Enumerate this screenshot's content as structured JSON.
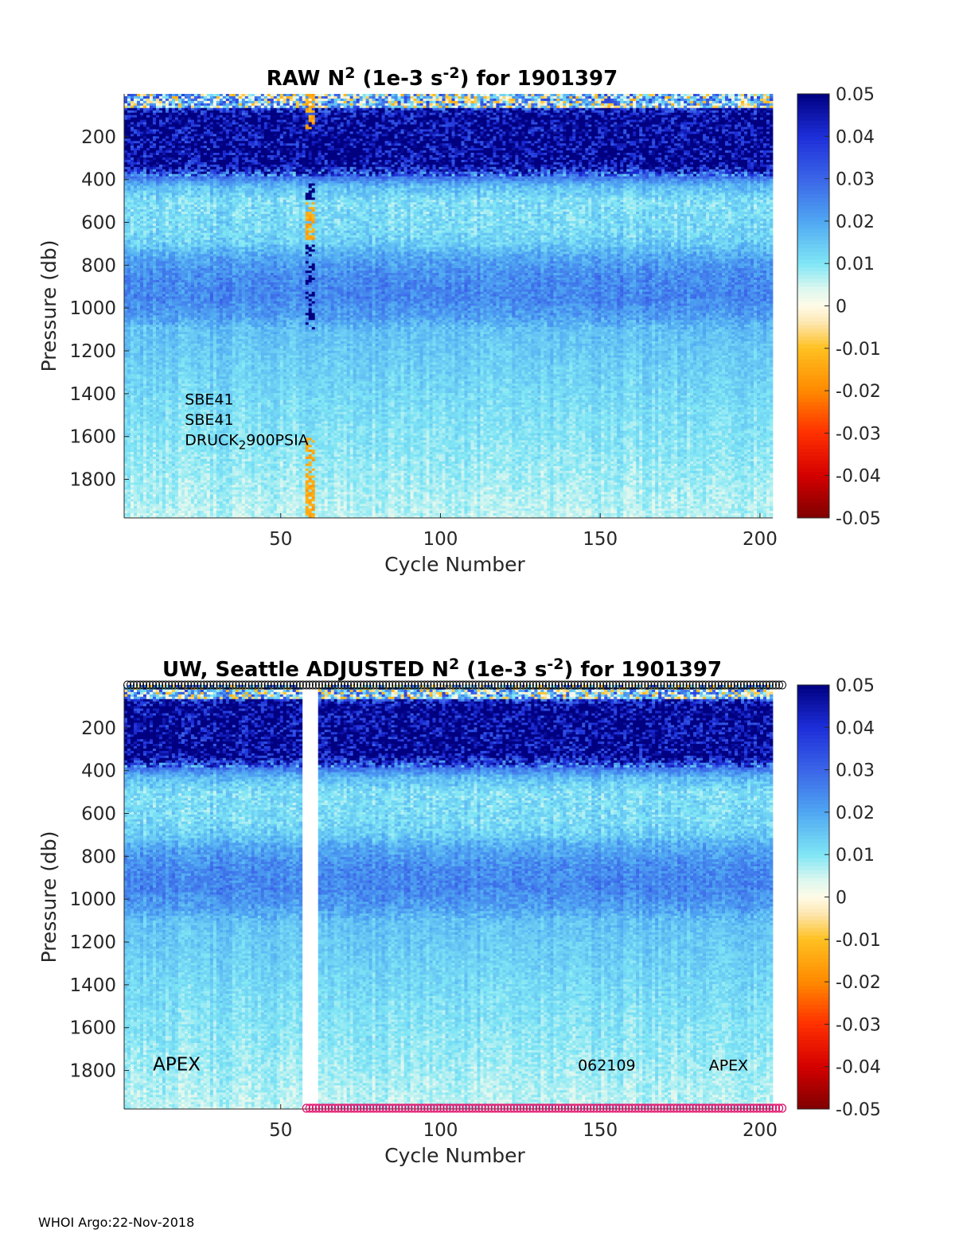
{
  "footer": "WHOI Argo:22-Nov-2018",
  "colormap": {
    "stops": [
      [
        -0.05,
        "#7f0000"
      ],
      [
        -0.04,
        "#d40000"
      ],
      [
        -0.03,
        "#ff3000"
      ],
      [
        -0.02,
        "#ff8a00"
      ],
      [
        -0.01,
        "#ffc020"
      ],
      [
        -0.004,
        "#fde7b0"
      ],
      [
        0.0,
        "#fffbe8"
      ],
      [
        0.004,
        "#dcf7ef"
      ],
      [
        0.01,
        "#7fe6f5"
      ],
      [
        0.02,
        "#4fa6f2"
      ],
      [
        0.03,
        "#3a64e8"
      ],
      [
        0.04,
        "#1d2ed8"
      ],
      [
        0.05,
        "#000080"
      ]
    ]
  },
  "marker_colors": {
    "top": "#000000",
    "bottom": "#e0106a"
  },
  "chart_data": [
    {
      "type": "heatmap",
      "id": "raw",
      "title_parts": [
        "RAW N",
        "2",
        " (1e-3 s",
        "-2",
        ") for 1901397"
      ],
      "xlabel": "Cycle Number",
      "ylabel": "Pressure (db)",
      "xlim": [
        1,
        204
      ],
      "ylim": [
        1980,
        0
      ],
      "xticks": [
        50,
        100,
        150,
        200
      ],
      "yticks": [
        200,
        400,
        600,
        800,
        1000,
        1200,
        1400,
        1600,
        1800
      ],
      "clim": [
        -0.05,
        0.05
      ],
      "cticks": [
        0.05,
        0.04,
        0.03,
        0.02,
        0.01,
        0,
        -0.01,
        -0.02,
        -0.03,
        -0.04,
        -0.05
      ],
      "gap_cycles": [],
      "anomaly_cycles": [
        58,
        59,
        60
      ],
      "profile": [
        [
          0,
          0.004
        ],
        [
          40,
          0.03
        ],
        [
          100,
          0.05
        ],
        [
          330,
          0.05
        ],
        [
          380,
          0.03
        ],
        [
          430,
          0.017
        ],
        [
          500,
          0.011
        ],
        [
          640,
          0.012
        ],
        [
          700,
          0.014
        ],
        [
          760,
          0.02
        ],
        [
          850,
          0.024
        ],
        [
          950,
          0.025
        ],
        [
          1040,
          0.021
        ],
        [
          1100,
          0.016
        ],
        [
          1250,
          0.014
        ],
        [
          1500,
          0.011
        ],
        [
          1800,
          0.008
        ],
        [
          1980,
          0.006
        ]
      ],
      "annotations": [
        {
          "text": "SBE41",
          "x": 20,
          "y": 1450
        },
        {
          "text": "SBE41",
          "x": 20,
          "y": 1545
        },
        {
          "text_parts": [
            "DRUCK",
            "2",
            "900PSIA"
          ],
          "x": 20,
          "y": 1640
        }
      ]
    },
    {
      "type": "heatmap",
      "id": "adjusted",
      "title_parts": [
        "UW, Seattle  ADJUSTED N",
        "2",
        " (1e-3 s",
        "-2",
        ") for 1901397"
      ],
      "xlabel": "Cycle Number",
      "ylabel": "Pressure (db)",
      "xlim": [
        1,
        204
      ],
      "ylim": [
        1980,
        0
      ],
      "xticks": [
        50,
        100,
        150,
        200
      ],
      "yticks": [
        200,
        400,
        600,
        800,
        1000,
        1200,
        1400,
        1600,
        1800
      ],
      "clim": [
        -0.05,
        0.05
      ],
      "cticks": [
        0.05,
        0.04,
        0.03,
        0.02,
        0.01,
        0,
        -0.01,
        -0.02,
        -0.03,
        -0.04,
        -0.05
      ],
      "gap_cycles": [
        57,
        58,
        59,
        60,
        61
      ],
      "anomaly_cycles": [],
      "markers_top": {
        "x_start": 2,
        "x_end": 207
      },
      "markers_bottom": {
        "x_start": 58,
        "x_end": 207
      },
      "profile": [
        [
          0,
          0.004
        ],
        [
          40,
          0.03
        ],
        [
          100,
          0.05
        ],
        [
          330,
          0.05
        ],
        [
          380,
          0.03
        ],
        [
          430,
          0.017
        ],
        [
          500,
          0.011
        ],
        [
          640,
          0.012
        ],
        [
          700,
          0.014
        ],
        [
          760,
          0.02
        ],
        [
          850,
          0.024
        ],
        [
          950,
          0.025
        ],
        [
          1040,
          0.021
        ],
        [
          1100,
          0.016
        ],
        [
          1250,
          0.014
        ],
        [
          1500,
          0.011
        ],
        [
          1800,
          0.008
        ],
        [
          1980,
          0.006
        ]
      ],
      "annotations": [
        {
          "text": "APEX",
          "x": 10,
          "y": 1800
        },
        {
          "text": "062109",
          "x": 143,
          "y": 1800
        },
        {
          "text": "APEX",
          "x": 184,
          "y": 1800
        }
      ]
    }
  ]
}
